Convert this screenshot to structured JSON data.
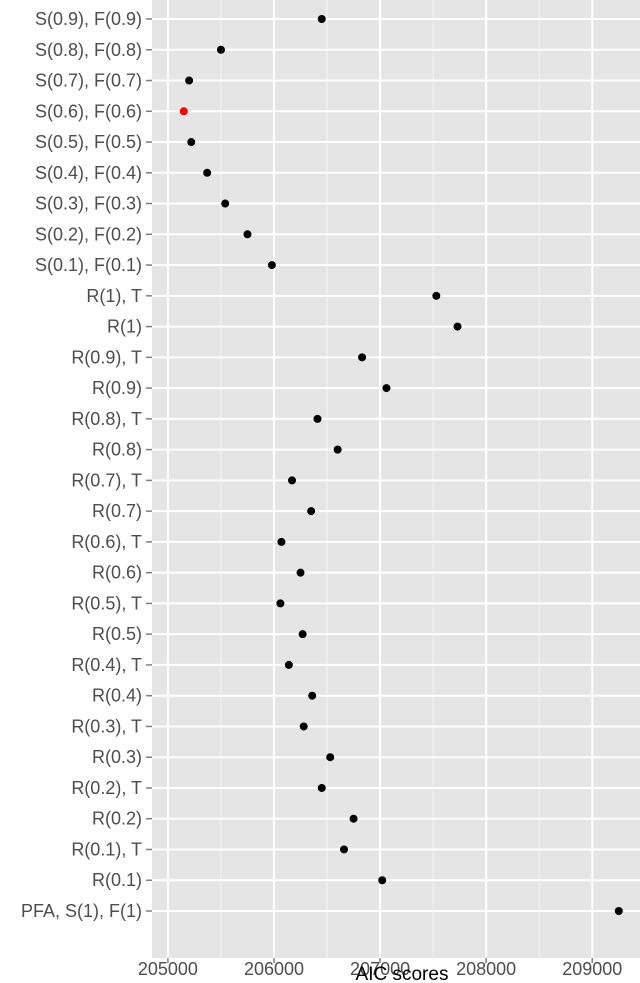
{
  "chart_data": {
    "type": "scatter",
    "title": "",
    "xlabel": "AIC scores",
    "ylabel": "",
    "xlim": [
      204850,
      209450
    ],
    "xticks": [
      205000,
      206000,
      207000,
      208000,
      209000
    ],
    "xtick_labels": [
      "205000",
      "206000",
      "207000",
      "208000",
      "209000"
    ],
    "grid": true,
    "legend": "none",
    "colors": {
      "panel": "#e5e5e5",
      "grid": "#ffffff",
      "point": "#000000",
      "highlight": "#ff0000",
      "tick_text": "#4d4d4d"
    },
    "categories": [
      "S(0.9), F(0.9)",
      "S(0.8), F(0.8)",
      "S(0.7), F(0.7)",
      "S(0.6), F(0.6)",
      "S(0.5), F(0.5)",
      "S(0.4), F(0.4)",
      "S(0.3), F(0.3)",
      "S(0.2), F(0.2)",
      "S(0.1), F(0.1)",
      "R(1), T",
      "R(1)",
      "R(0.9), T",
      "R(0.9)",
      "R(0.8), T",
      "R(0.8)",
      "R(0.7), T",
      "R(0.7)",
      "R(0.6), T",
      "R(0.6)",
      "R(0.5), T",
      "R(0.5)",
      "R(0.4), T",
      "R(0.4)",
      "R(0.3), T",
      "R(0.3)",
      "R(0.2), T",
      "R(0.2)",
      "R(0.1), T",
      "R(0.1)",
      "PFA, S(1), F(1)"
    ],
    "values": [
      206450,
      205500,
      205200,
      205150,
      205220,
      205370,
      205540,
      205750,
      205980,
      207530,
      207730,
      206830,
      207060,
      206410,
      206600,
      206170,
      206350,
      206070,
      206250,
      206060,
      206270,
      206140,
      206360,
      206280,
      206530,
      206450,
      206750,
      206660,
      207020,
      209250
    ],
    "highlight_index": 3
  }
}
